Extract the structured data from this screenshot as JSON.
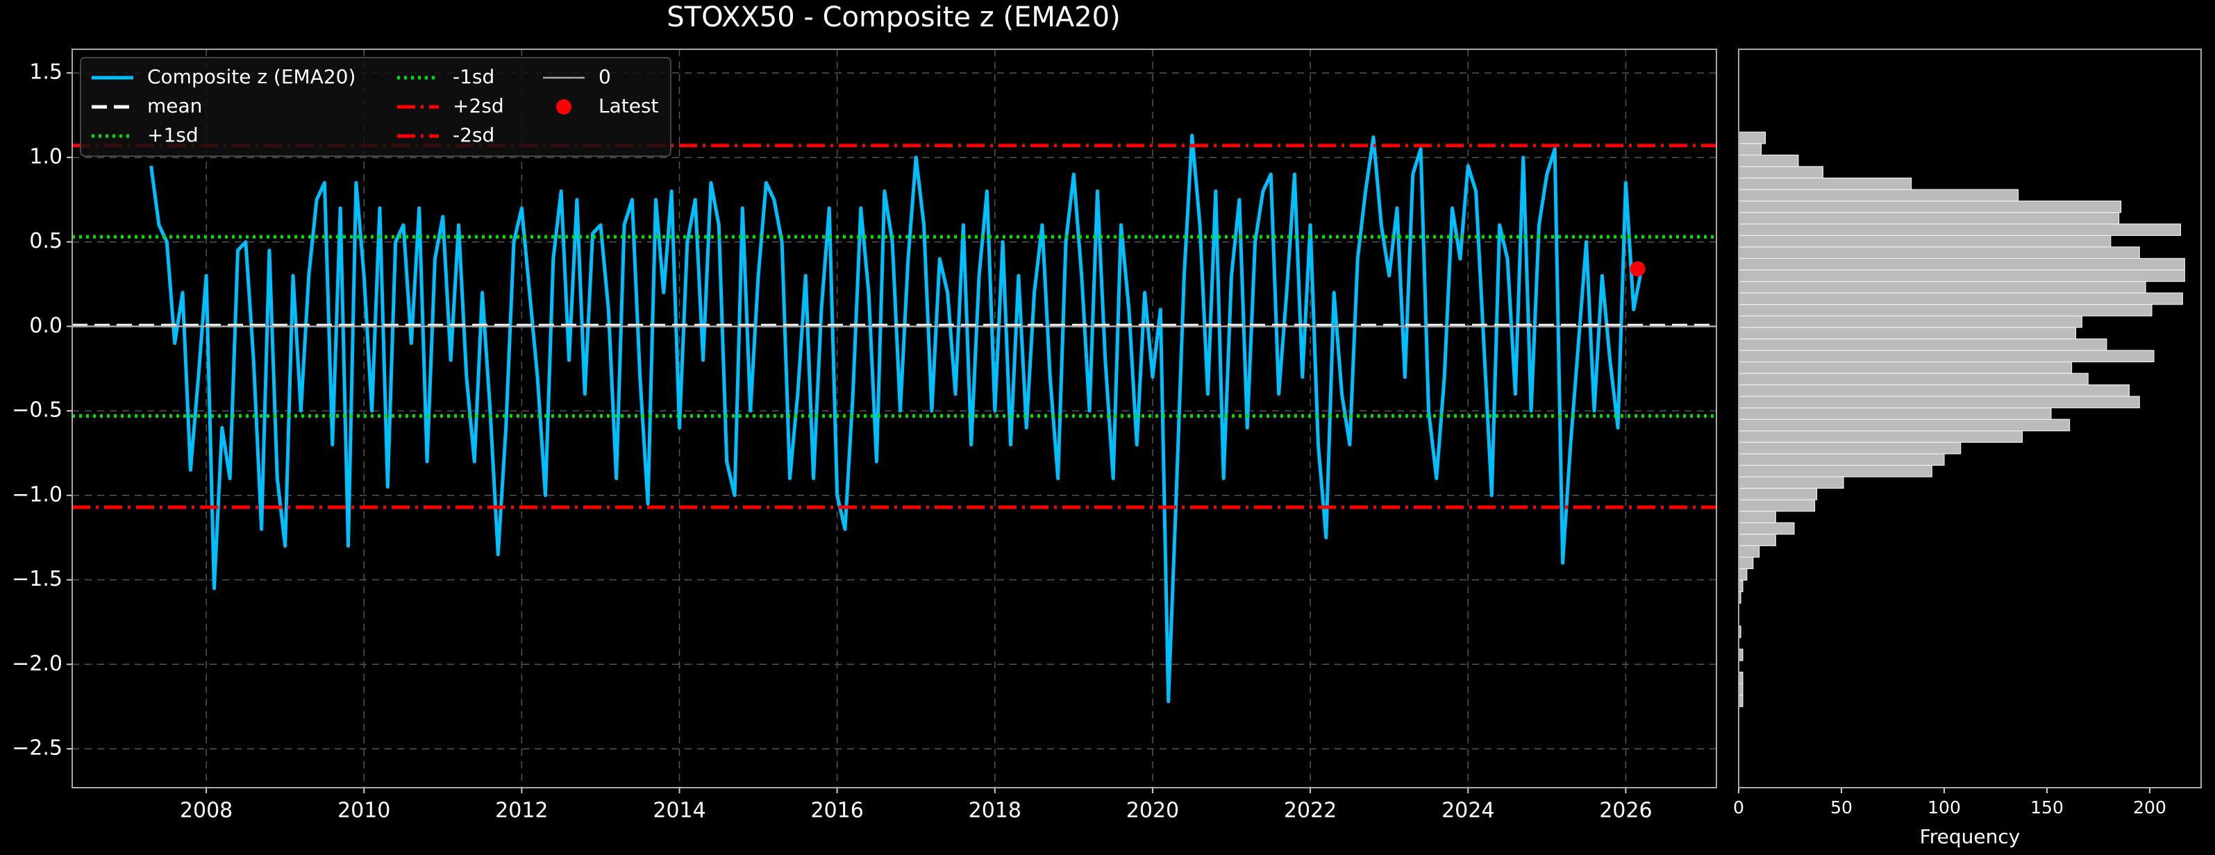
{
  "chart_data": [
    {
      "type": "line",
      "title": "STOXX50 - Composite z (EMA20)",
      "x": [
        2007.3,
        2007.4,
        2007.5,
        2007.6,
        2007.7,
        2007.8,
        2007.9,
        2008.0,
        2008.1,
        2008.2,
        2008.3,
        2008.4,
        2008.5,
        2008.6,
        2008.7,
        2008.8,
        2008.9,
        2009.0,
        2009.1,
        2009.2,
        2009.3,
        2009.4,
        2009.5,
        2009.6,
        2009.7,
        2009.8,
        2009.9,
        2010.0,
        2010.1,
        2010.2,
        2010.3,
        2010.4,
        2010.5,
        2010.6,
        2010.7,
        2010.8,
        2010.9,
        2011.0,
        2011.1,
        2011.2,
        2011.3,
        2011.4,
        2011.5,
        2011.6,
        2011.7,
        2011.8,
        2011.9,
        2012.0,
        2012.1,
        2012.2,
        2012.3,
        2012.4,
        2012.5,
        2012.6,
        2012.7,
        2012.8,
        2012.9,
        2013.0,
        2013.1,
        2013.2,
        2013.3,
        2013.4,
        2013.5,
        2013.6,
        2013.7,
        2013.8,
        2013.9,
        2014.0,
        2014.1,
        2014.2,
        2014.3,
        2014.4,
        2014.5,
        2014.6,
        2014.7,
        2014.8,
        2014.9,
        2015.0,
        2015.1,
        2015.2,
        2015.3,
        2015.4,
        2015.5,
        2015.6,
        2015.7,
        2015.8,
        2015.9,
        2016.0,
        2016.1,
        2016.2,
        2016.3,
        2016.4,
        2016.5,
        2016.6,
        2016.7,
        2016.8,
        2016.9,
        2017.0,
        2017.1,
        2017.2,
        2017.3,
        2017.4,
        2017.5,
        2017.6,
        2017.7,
        2017.8,
        2017.9,
        2018.0,
        2018.1,
        2018.2,
        2018.3,
        2018.4,
        2018.5,
        2018.6,
        2018.7,
        2018.8,
        2018.9,
        2019.0,
        2019.1,
        2019.2,
        2019.3,
        2019.4,
        2019.5,
        2019.6,
        2019.7,
        2019.8,
        2019.9,
        2020.0,
        2020.1,
        2020.2,
        2020.3,
        2020.4,
        2020.5,
        2020.6,
        2020.7,
        2020.8,
        2020.9,
        2021.0,
        2021.1,
        2021.2,
        2021.3,
        2021.4,
        2021.5,
        2021.6,
        2021.7,
        2021.8,
        2021.9,
        2022.0,
        2022.1,
        2022.2,
        2022.3,
        2022.4,
        2022.5,
        2022.6,
        2022.7,
        2022.8,
        2022.9,
        2023.0,
        2023.1,
        2023.2,
        2023.3,
        2023.4,
        2023.5,
        2023.6,
        2023.7,
        2023.8,
        2023.9,
        2024.0,
        2024.1,
        2024.2,
        2024.3,
        2024.4,
        2024.5,
        2024.6,
        2024.7,
        2024.8,
        2024.9,
        2025.0,
        2025.1,
        2025.2,
        2025.3,
        2025.4,
        2025.5,
        2025.6,
        2025.7,
        2025.8,
        2025.9,
        2026.0,
        2026.1,
        2026.2
      ],
      "series": [
        {
          "name": "Composite z (EMA20)",
          "color": "#00bfff",
          "values": [
            0.95,
            0.6,
            0.5,
            -0.1,
            0.2,
            -0.85,
            -0.3,
            0.3,
            -1.55,
            -0.6,
            -0.9,
            0.45,
            0.5,
            -0.2,
            -1.2,
            0.45,
            -0.9,
            -1.3,
            0.3,
            -0.5,
            0.3,
            0.75,
            0.85,
            -0.7,
            0.7,
            -1.3,
            0.85,
            0.3,
            -0.5,
            0.7,
            -0.95,
            0.5,
            0.6,
            -0.1,
            0.7,
            -0.8,
            0.4,
            0.65,
            -0.2,
            0.6,
            -0.3,
            -0.8,
            0.2,
            -0.5,
            -1.35,
            -0.6,
            0.5,
            0.7,
            0.2,
            -0.3,
            -1.0,
            0.4,
            0.8,
            -0.2,
            0.75,
            -0.4,
            0.55,
            0.6,
            0.1,
            -0.9,
            0.6,
            0.75,
            -0.3,
            -1.05,
            0.75,
            0.2,
            0.8,
            -0.6,
            0.5,
            0.75,
            -0.2,
            0.85,
            0.6,
            -0.8,
            -1.0,
            0.7,
            -0.5,
            0.3,
            0.85,
            0.75,
            0.5,
            -0.9,
            -0.4,
            0.3,
            -0.9,
            0.1,
            0.7,
            -1.0,
            -1.2,
            -0.4,
            0.7,
            0.2,
            -0.8,
            0.8,
            0.5,
            -0.5,
            0.4,
            1.0,
            0.6,
            -0.5,
            0.4,
            0.2,
            -0.4,
            0.6,
            -0.7,
            0.3,
            0.8,
            -0.5,
            0.5,
            -0.7,
            0.3,
            -0.6,
            0.2,
            0.6,
            -0.3,
            -0.9,
            0.5,
            0.9,
            0.3,
            -0.5,
            0.8,
            -0.2,
            -0.9,
            0.6,
            0.1,
            -0.7,
            0.2,
            -0.3,
            0.1,
            -2.22,
            -1.0,
            0.3,
            1.13,
            0.6,
            -0.4,
            0.8,
            -0.9,
            0.3,
            0.75,
            -0.6,
            0.5,
            0.8,
            0.9,
            -0.4,
            0.2,
            0.9,
            -0.3,
            0.6,
            -0.7,
            -1.25,
            0.2,
            -0.4,
            -0.7,
            0.4,
            0.8,
            1.12,
            0.6,
            0.3,
            0.7,
            -0.3,
            0.9,
            1.05,
            -0.5,
            -0.9,
            -0.3,
            0.7,
            0.4,
            0.95,
            0.8,
            -0.1,
            -1.0,
            0.6,
            0.4,
            -0.4,
            1.0,
            -0.5,
            0.6,
            0.9,
            1.05,
            -1.4,
            -0.7,
            -0.1,
            0.5,
            -0.5,
            0.3,
            -0.2,
            -0.6,
            0.85,
            0.1,
            0.34
          ]
        }
      ],
      "hlines": [
        {
          "name": "mean",
          "value": 0.005,
          "color": "#ffffff",
          "style": "dashed"
        },
        {
          "name": "+1sd",
          "value": 0.53,
          "color": "#00e000",
          "style": "dotted"
        },
        {
          "name": "-1sd",
          "value": -0.53,
          "color": "#00e000",
          "style": "dotted"
        },
        {
          "name": "+2sd",
          "value": 1.07,
          "color": "#ff0000",
          "style": "dashdot"
        },
        {
          "name": "-2sd",
          "value": -1.07,
          "color": "#ff0000",
          "style": "dashdot"
        },
        {
          "name": "0",
          "value": 0,
          "color": "#aaaaaa",
          "style": "solid"
        }
      ],
      "points": [
        {
          "name": "Latest",
          "color": "#ff0000",
          "x": 2026.15,
          "y": 0.34
        }
      ],
      "xlim": [
        2006.3,
        2027.15
      ],
      "ylim": [
        -2.73,
        1.64
      ],
      "xticks": [
        2008,
        2010,
        2012,
        2014,
        2016,
        2018,
        2020,
        2022,
        2024,
        2026
      ],
      "yticks": [
        1.5,
        {
          "value": 1.0,
          "label": "1.0"
        },
        {
          "value": 0.5,
          "label": "0.5"
        },
        {
          "value": 0.0,
          "label": "0.0"
        },
        {
          "value": -0.5,
          "label": "−0.5"
        },
        {
          "value": -1.0,
          "label": "−1.0"
        },
        {
          "value": -1.5,
          "label": "−1.5"
        },
        {
          "value": -2.0,
          "label": "−2.0"
        },
        {
          "value": -2.5,
          "label": "−2.5"
        }
      ],
      "grid": true,
      "legend": "upper left"
    },
    {
      "type": "histogram",
      "orientation": "horizontal",
      "xlabel": "Frequency",
      "color": "#bbbbbb",
      "bins": [
        -2.25,
        -2.182,
        -2.114,
        -2.046,
        -1.978,
        -1.91,
        -1.842,
        -1.774,
        -1.706,
        -1.638,
        -1.57,
        -1.502,
        -1.434,
        -1.366,
        -1.298,
        -1.23,
        -1.162,
        -1.094,
        -1.026,
        -0.958,
        -0.89,
        -0.822,
        -0.754,
        -0.686,
        -0.618,
        -0.55,
        -0.482,
        -0.414,
        -0.346,
        -0.278,
        -0.21,
        -0.142,
        -0.074,
        -0.006,
        0.062,
        0.13,
        0.198,
        0.266,
        0.334,
        0.402,
        0.47,
        0.538,
        0.606,
        0.674,
        0.742,
        0.81,
        0.878,
        0.946,
        1.014,
        1.082,
        1.15
      ],
      "counts": [
        2,
        2,
        2,
        0,
        2,
        0,
        1,
        0,
        0,
        1,
        2,
        4,
        7,
        10,
        18,
        27,
        18,
        37,
        38,
        51,
        94,
        100,
        108,
        138,
        161,
        152,
        195,
        190,
        170,
        162,
        202,
        179,
        164,
        167,
        201,
        216,
        198,
        217,
        217,
        195,
        181,
        215,
        185,
        186,
        136,
        84,
        41,
        29,
        11,
        13
      ],
      "xlim": [
        0,
        225
      ],
      "ylim": [
        -2.73,
        1.64
      ],
      "xticks": [
        0,
        50,
        100,
        150,
        200
      ]
    }
  ]
}
